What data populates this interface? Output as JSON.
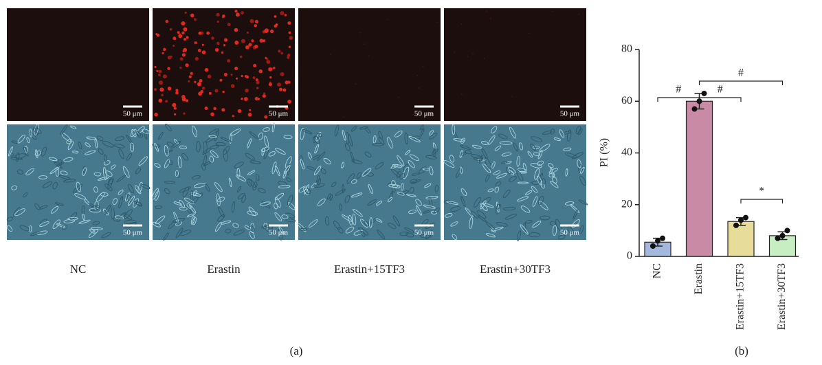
{
  "panel_a": {
    "captions": [
      "NC",
      "Erastin",
      "Erastin+15TF3",
      "Erastin+30TF3"
    ],
    "scale_bar": "50 μm",
    "label": "(a)"
  },
  "panel_b": {
    "label": "(b)"
  },
  "chart_data": {
    "type": "bar",
    "y_label": "PI (%)",
    "categories": [
      "NC",
      "Erastin",
      "Erastin+15TF3",
      "Erastin+30TF3"
    ],
    "values": [
      5.5,
      60,
      13.5,
      8
    ],
    "errors": [
      1.5,
      3,
      1.5,
      1.5
    ],
    "points": [
      [
        4,
        6,
        7
      ],
      [
        57,
        60,
        63
      ],
      [
        12,
        14,
        15
      ],
      [
        7,
        8,
        10
      ]
    ],
    "colors": [
      "#a3b8dc",
      "#c98aa5",
      "#e7dc9a",
      "#c7eec3"
    ],
    "ylim": [
      0,
      80
    ],
    "yticks": [
      0,
      20,
      40,
      60,
      80
    ],
    "annotations": [
      "#",
      "#",
      "#",
      "*"
    ]
  }
}
